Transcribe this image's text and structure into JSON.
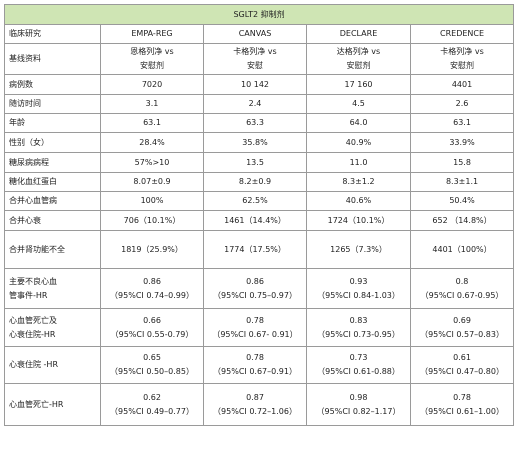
{
  "title": "SGLT2 抑制剂",
  "columns": [
    "临床研究",
    "EMPA-REG",
    "CANVAS",
    "DECLARE",
    "CREDENCE"
  ],
  "rows": [
    {
      "label": [
        "基线资料"
      ],
      "cells": [
        [
          "恩格列净 vs",
          "安慰剂"
        ],
        [
          "卡格列净 vs",
          "安慰"
        ],
        [
          "达格列净 vs",
          "安慰剂"
        ],
        [
          "卡格列净 vs",
          "安慰剂"
        ]
      ]
    },
    {
      "label": [
        "病例数"
      ],
      "cells": [
        [
          "7020"
        ],
        [
          "10 142"
        ],
        [
          "17 160"
        ],
        [
          "4401"
        ]
      ]
    },
    {
      "label": [
        "随访时间"
      ],
      "cells": [
        [
          "3.1"
        ],
        [
          "2.4"
        ],
        [
          "4.5"
        ],
        [
          "2.6"
        ]
      ]
    },
    {
      "label": [
        "年龄"
      ],
      "cells": [
        [
          "63.1"
        ],
        [
          "63.3"
        ],
        [
          "64.0"
        ],
        [
          "63.1"
        ]
      ]
    },
    {
      "label": [
        "性别（女）"
      ],
      "cells": [
        [
          "28.4%"
        ],
        [
          "35.8%"
        ],
        [
          "40.9%"
        ],
        [
          "33.9%"
        ]
      ]
    },
    {
      "label": [
        "糖尿病病程"
      ],
      "cells": [
        [
          "57%>10"
        ],
        [
          "13.5"
        ],
        [
          "11.0"
        ],
        [
          "15.8"
        ]
      ]
    },
    {
      "label": [
        "糖化血红蛋白"
      ],
      "cells": [
        [
          "8.07±0.9"
        ],
        [
          "8.2±0.9"
        ],
        [
          "8.3±1.2"
        ],
        [
          "8.3±1.1"
        ]
      ]
    },
    {
      "label": [
        "合并心血管病"
      ],
      "cells": [
        [
          "100%"
        ],
        [
          "62.5%"
        ],
        [
          "40.6%"
        ],
        [
          "50.4%"
        ]
      ]
    },
    {
      "label": [
        "合并心衰"
      ],
      "cells": [
        [
          "706（10.1%）"
        ],
        [
          "1461（14.4%）"
        ],
        [
          "1724（10.1%）"
        ],
        [
          "652 （14.8%）"
        ]
      ]
    },
    {
      "label": [
        "合并肾功能不全"
      ],
      "cells": [
        [
          "1819（25.9%）"
        ],
        [
          "1774（17.5%）"
        ],
        [
          "1265（7.3%）"
        ],
        [
          "4401（100%）"
        ]
      ]
    },
    {
      "label": [
        "主要不良心血",
        "管事件-HR"
      ],
      "cells": [
        [
          "0.86",
          "（95%CI 0.74–0.99）"
        ],
        [
          "0.86",
          "（95%CI 0.75–0.97）"
        ],
        [
          "0.93",
          "（95%CI 0.84-1.03）"
        ],
        [
          "0.8",
          "（95%CI 0.67-0.95）"
        ]
      ]
    },
    {
      "label": [
        "心血管死亡及",
        "心衰住院-HR"
      ],
      "cells": [
        [
          "0.66",
          "（95%CI 0.55-0.79）"
        ],
        [
          "0.78",
          "（95%CI 0.67- 0.91）"
        ],
        [
          "0.83",
          "（95%CI 0.73-0.95）"
        ],
        [
          "0.69",
          "（95%CI 0.57–0.83）"
        ]
      ]
    },
    {
      "label": [
        "心衰住院 -HR"
      ],
      "cells": [
        [
          "0.65",
          "（95%CI 0.50–0.85）"
        ],
        [
          "0.78",
          "（95%CI 0.67–0.91）"
        ],
        [
          "0.73",
          "（95%CI 0.61-0.88）"
        ],
        [
          "0.61",
          "（95%CI 0.47–0.80）"
        ]
      ]
    },
    {
      "label": [
        "心血管死亡-HR"
      ],
      "cells": [
        [
          "0.62",
          "（95%CI 0.49–0.77）"
        ],
        [
          "0.87",
          "（95%CI 0.72–1.06）"
        ],
        [
          "0.98",
          "（95%CI 0.82–1.17）"
        ],
        [
          "0.78",
          "（95%CI 0.61–1.00）"
        ]
      ]
    }
  ]
}
